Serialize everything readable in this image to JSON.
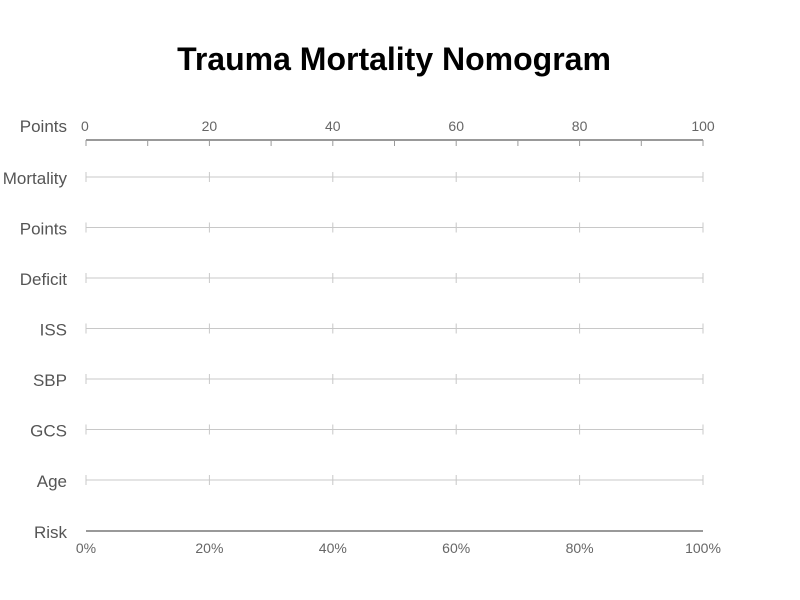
{
  "chart_data": {
    "type": "nomogram",
    "title": "Trauma Mortality Nomogram",
    "points_axis": {
      "label": "Points",
      "range": [
        0,
        100
      ],
      "ticks": [
        0,
        20,
        40,
        60,
        80,
        100
      ],
      "minor_step": 10
    },
    "scales": [
      {
        "label": "Mortality"
      },
      {
        "label": "Points"
      },
      {
        "label": "Deficit"
      },
      {
        "label": "ISS"
      },
      {
        "label": "SBP"
      },
      {
        "label": "GCS"
      },
      {
        "label": "Age"
      }
    ],
    "scale_ticks": [
      0,
      20,
      40,
      60,
      80,
      100
    ],
    "risk_axis": {
      "label": "Risk",
      "ticks": [
        "0%",
        "20%",
        "40%",
        "60%",
        "80%",
        "100%"
      ]
    },
    "grid": true
  },
  "colors": {
    "title": "#000000",
    "labels": "#555555",
    "tick_labels": "#666666",
    "axis": "#999999",
    "scale_line": "#c8c8c8"
  }
}
